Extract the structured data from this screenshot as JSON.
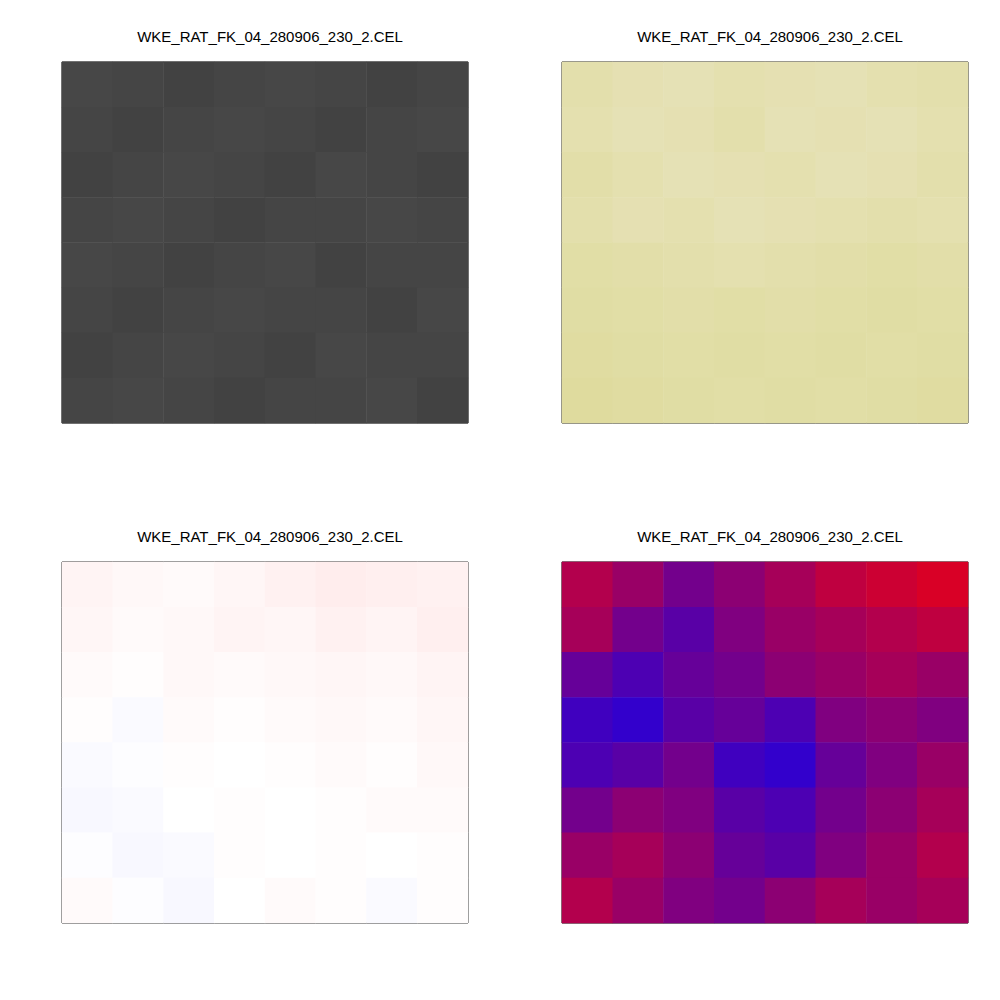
{
  "chart_data": [
    {
      "type": "heatmap",
      "title": "WKE_RAT_FK_04_280906_230_2.CEL",
      "tick_labels": false,
      "colors": [
        "#000000",
        "#ffffff"
      ],
      "zlim": [
        0,
        1
      ],
      "cells": [
        [
          0.28,
          0.27,
          0.26,
          0.27,
          0.28,
          0.27,
          0.26,
          0.27
        ],
        [
          0.27,
          0.26,
          0.27,
          0.28,
          0.27,
          0.26,
          0.27,
          0.28
        ],
        [
          0.26,
          0.27,
          0.28,
          0.27,
          0.26,
          0.28,
          0.27,
          0.26
        ],
        [
          0.27,
          0.28,
          0.27,
          0.26,
          0.27,
          0.27,
          0.28,
          0.27
        ],
        [
          0.28,
          0.27,
          0.26,
          0.27,
          0.28,
          0.26,
          0.27,
          0.27
        ],
        [
          0.27,
          0.26,
          0.27,
          0.28,
          0.27,
          0.27,
          0.26,
          0.28
        ],
        [
          0.26,
          0.27,
          0.28,
          0.27,
          0.26,
          0.28,
          0.27,
          0.27
        ],
        [
          0.27,
          0.28,
          0.27,
          0.26,
          0.27,
          0.27,
          0.28,
          0.26
        ]
      ]
    },
    {
      "type": "heatmap",
      "title": "WKE_RAT_FK_04_280906_230_2.CEL",
      "tick_labels": false,
      "colors": [
        "#f2ece0",
        "#c8c850",
        "#2e9a1e"
      ],
      "zlim": [
        0,
        1
      ],
      "cells": [
        [
          0.18,
          0.16,
          0.15,
          0.17,
          0.16,
          0.15,
          0.17,
          0.18
        ],
        [
          0.17,
          0.15,
          0.16,
          0.18,
          0.15,
          0.16,
          0.15,
          0.17
        ],
        [
          0.19,
          0.17,
          0.15,
          0.16,
          0.17,
          0.15,
          0.16,
          0.18
        ],
        [
          0.18,
          0.16,
          0.17,
          0.15,
          0.16,
          0.17,
          0.18,
          0.17
        ],
        [
          0.2,
          0.19,
          0.18,
          0.17,
          0.18,
          0.19,
          0.2,
          0.19
        ],
        [
          0.21,
          0.2,
          0.19,
          0.2,
          0.19,
          0.2,
          0.21,
          0.2
        ],
        [
          0.22,
          0.21,
          0.2,
          0.21,
          0.2,
          0.21,
          0.2,
          0.21
        ],
        [
          0.23,
          0.22,
          0.21,
          0.2,
          0.21,
          0.2,
          0.21,
          0.22
        ]
      ]
    },
    {
      "type": "heatmap",
      "title": "WKE_RAT_FK_04_280906_230_2.CEL",
      "tick_labels": false,
      "colors": [
        "#1a1aff",
        "#ffffff",
        "#ff1a1a"
      ],
      "zlim": [
        -1,
        1
      ],
      "cells": [
        [
          0.05,
          0.03,
          0.02,
          0.04,
          0.06,
          0.08,
          0.07,
          0.06
        ],
        [
          0.04,
          0.02,
          0.03,
          0.05,
          0.04,
          0.06,
          0.05,
          0.07
        ],
        [
          0.02,
          0.01,
          0.03,
          0.02,
          0.03,
          0.04,
          0.03,
          0.05
        ],
        [
          0.01,
          -0.02,
          0.02,
          0.01,
          0.02,
          0.03,
          0.02,
          0.04
        ],
        [
          -0.02,
          -0.01,
          0.01,
          0,
          0.01,
          0.02,
          0.01,
          0.03
        ],
        [
          -0.03,
          -0.02,
          0,
          0.01,
          0,
          0.01,
          0.02,
          0.02
        ],
        [
          -0.01,
          -0.03,
          -0.02,
          0.01,
          0,
          0.01,
          0,
          0.01
        ],
        [
          0.02,
          -0.01,
          -0.03,
          0,
          0.02,
          0.01,
          -0.02,
          0.01
        ]
      ]
    },
    {
      "type": "heatmap",
      "title": "WKE_RAT_FK_04_280906_230_2.CEL",
      "tick_labels": false,
      "colors": [
        "#0000ff",
        "#ff0000"
      ],
      "zlim": [
        -1,
        1
      ],
      "cells": [
        [
          0.4,
          0.2,
          -0.1,
          0.1,
          0.3,
          0.5,
          0.6,
          0.7
        ],
        [
          0.3,
          -0.1,
          -0.3,
          0,
          0.2,
          0.3,
          0.4,
          0.5
        ],
        [
          -0.2,
          -0.4,
          -0.2,
          -0.1,
          0.1,
          0.2,
          0.3,
          0.2
        ],
        [
          -0.5,
          -0.6,
          -0.3,
          -0.2,
          -0.4,
          0,
          0.1,
          0
        ],
        [
          -0.4,
          -0.3,
          -0.1,
          -0.5,
          -0.6,
          -0.2,
          0,
          0.2
        ],
        [
          -0.1,
          0.1,
          0,
          -0.3,
          -0.4,
          -0.1,
          0.1,
          0.3
        ],
        [
          0.2,
          0.3,
          0.1,
          -0.2,
          -0.3,
          0,
          0.2,
          0.4
        ],
        [
          0.4,
          0.2,
          0,
          -0.1,
          0.1,
          0.3,
          0.2,
          0.3
        ]
      ]
    }
  ]
}
